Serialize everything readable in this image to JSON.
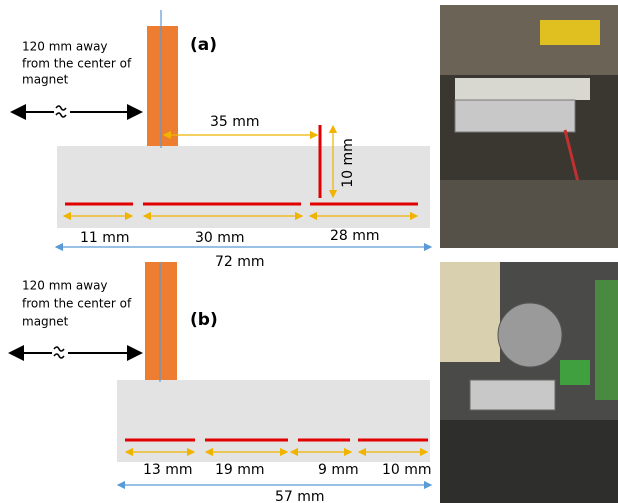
{
  "panels": [
    {
      "label": "(a)",
      "note": [
        "120 mm away",
        "from the center of",
        "magnet"
      ],
      "gap": "35 mm",
      "height": "10 mm",
      "segments": [
        "11 mm",
        "30 mm",
        "28 mm"
      ],
      "total": "72 mm"
    },
    {
      "label": "(b)",
      "note": [
        "120 mm away",
        "from the center of",
        "magnet"
      ],
      "segments": [
        "13 mm",
        "19 mm",
        "9 mm",
        "10 mm"
      ],
      "total": "57 mm"
    }
  ]
}
